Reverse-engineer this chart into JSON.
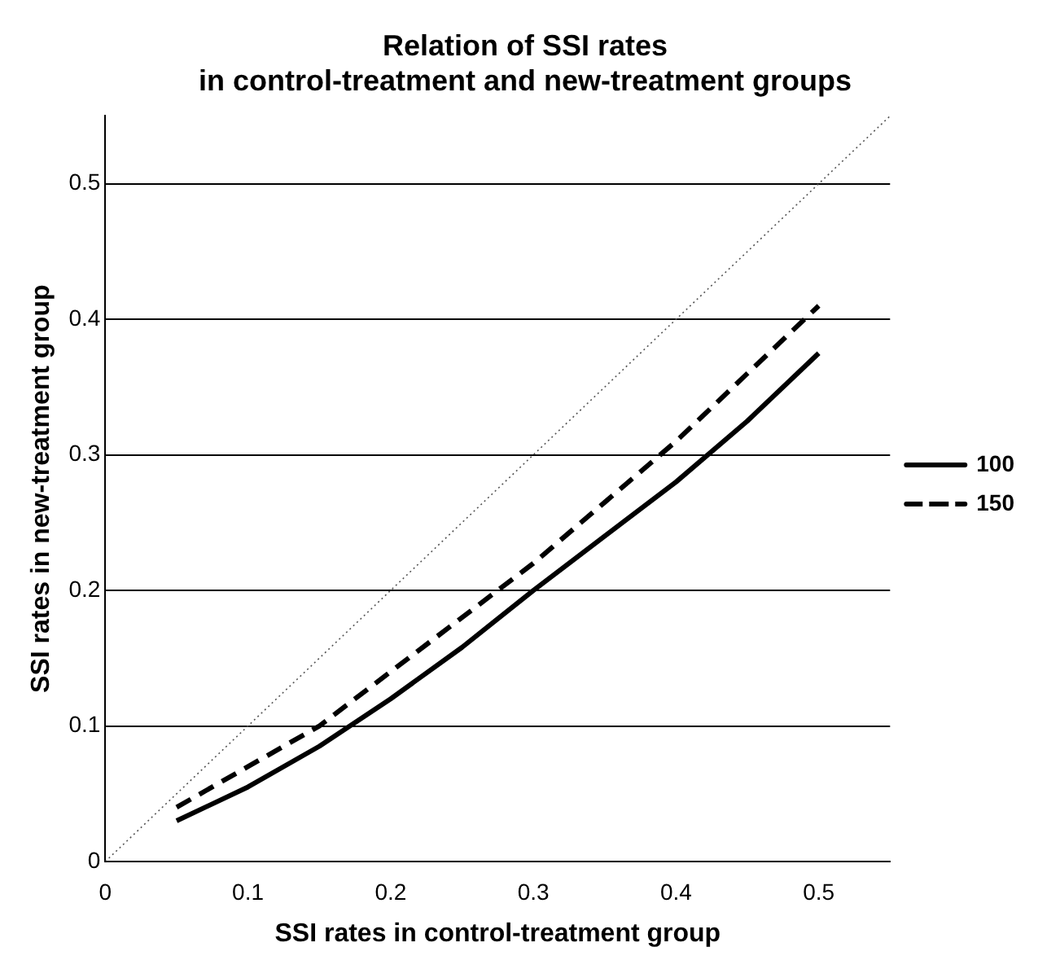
{
  "chart_data": {
    "type": "line",
    "title": "Relation of SSI rates\nin control-treatment and new-treatment groups",
    "xlabel": "SSI rates in control-treatment group",
    "ylabel": "SSI rates in new-treatment group",
    "xlim": [
      0,
      0.55
    ],
    "xticks": [
      0,
      0.1,
      0.2,
      0.3,
      0.4,
      0.5
    ],
    "ylim": [
      0,
      0.55
    ],
    "yticks": [
      0,
      0.1,
      0.2,
      0.3,
      0.4,
      0.5
    ],
    "grid": "y",
    "legend": "right",
    "marker": "none",
    "series": [
      {
        "name": "100",
        "color": "#000000",
        "line_style": "solid",
        "x": [
          0.05,
          0.1,
          0.15,
          0.2,
          0.25,
          0.3,
          0.35,
          0.4,
          0.45,
          0.5
        ],
        "values": [
          0.03,
          0.055,
          0.085,
          0.12,
          0.158,
          0.2,
          0.24,
          0.28,
          0.325,
          0.375
        ]
      },
      {
        "name": "150",
        "color": "#000000",
        "line_style": "dashed",
        "x": [
          0.05,
          0.1,
          0.15,
          0.2,
          0.25,
          0.3,
          0.35,
          0.4,
          0.45,
          0.5
        ],
        "values": [
          0.04,
          0.07,
          0.1,
          0.14,
          0.18,
          0.22,
          0.265,
          0.31,
          0.36,
          0.41
        ]
      },
      {
        "color": "#555555",
        "line_style": "dotted",
        "x": [
          0,
          0.55
        ],
        "values": [
          0,
          0.55
        ]
      }
    ]
  }
}
